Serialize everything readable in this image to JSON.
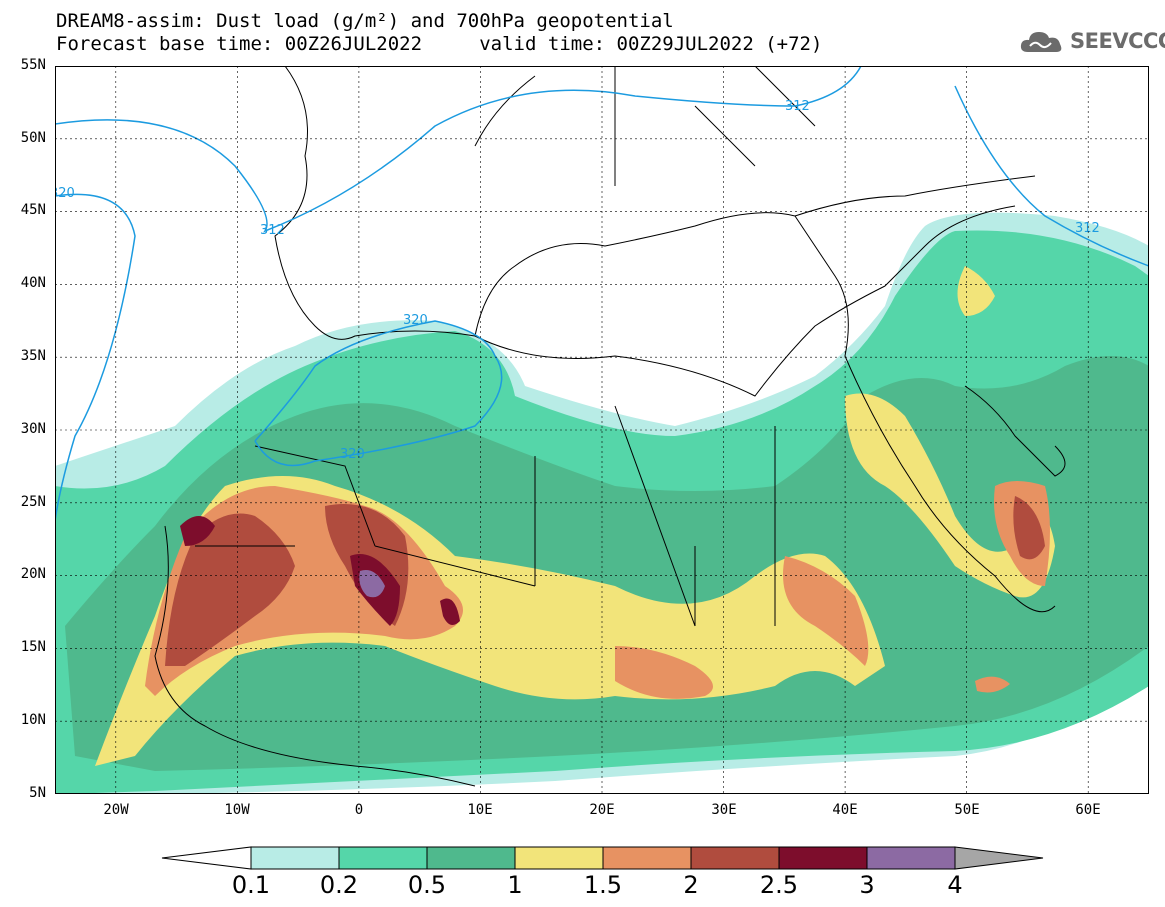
{
  "header": {
    "title_line1": "DREAM8-assim: Dust load (g/m²) and 700hPa geopotential",
    "title_line2": "Forecast base time: 00Z26JUL2022     valid time: 00Z29JUL2022 (+72)"
  },
  "logo": {
    "text": "SEEVCCC",
    "icon": "cloud-icon",
    "color": "#6b6b6b"
  },
  "axes": {
    "lat_ticks": [
      "55N",
      "50N",
      "45N",
      "40N",
      "35N",
      "30N",
      "25N",
      "20N",
      "15N",
      "10N",
      "5N"
    ],
    "lon_ticks": [
      "20W",
      "10W",
      "0",
      "10E",
      "20E",
      "30E",
      "40E",
      "50E",
      "60E"
    ],
    "lon_range": [
      -25,
      65
    ],
    "lat_range": [
      5,
      55
    ]
  },
  "contour_labels": [
    "312",
    "312",
    "320",
    "320",
    "320",
    "312"
  ],
  "colorbar": {
    "labels": [
      "0.1",
      "0.2",
      "0.5",
      "1",
      "1.5",
      "2",
      "2.5",
      "3",
      "4"
    ],
    "colors": [
      "#b8ece6",
      "#55d6a9",
      "#4fb98d",
      "#f2e47a",
      "#e79262",
      "#b04c3e",
      "#7d0d2c",
      "#8c6aa3",
      "#a6a6a6"
    ]
  },
  "colors": {
    "geopotential": "#1c9be0",
    "land_border": "#000000",
    "background": "#ffffff"
  }
}
